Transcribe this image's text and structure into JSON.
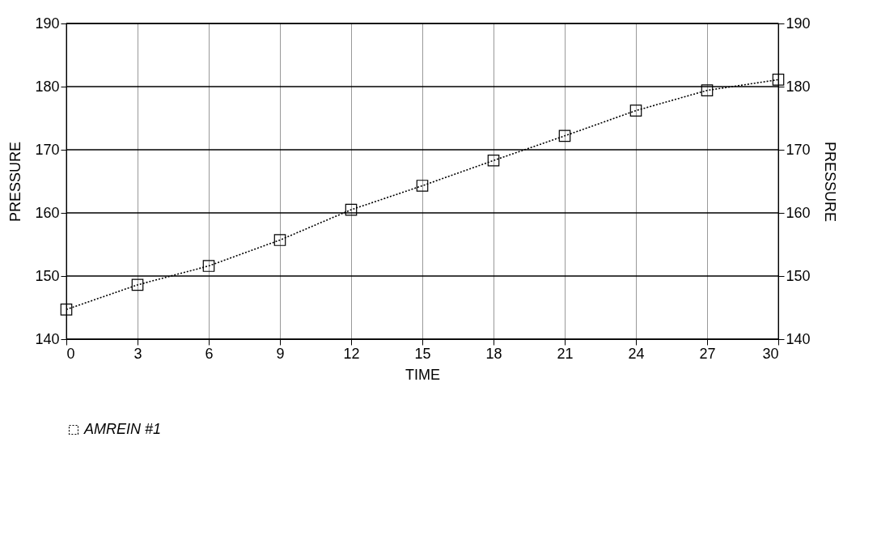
{
  "chart_data": {
    "type": "line",
    "xlabel": "TIME",
    "ylabel": "PRESSURE",
    "y2label": "PRESSURE",
    "x": [
      0,
      3,
      6,
      9,
      12,
      15,
      18,
      21,
      24,
      27,
      30
    ],
    "series": [
      {
        "name": "AMREIN #1",
        "color": "#000000",
        "values": [
          144.7,
          148.6,
          151.6,
          155.7,
          160.5,
          164.3,
          168.3,
          172.2,
          176.2,
          179.4,
          181.1
        ]
      }
    ],
    "xlim": [
      0,
      30
    ],
    "xticks": [
      0,
      3,
      6,
      9,
      12,
      15,
      18,
      21,
      24,
      27,
      30
    ],
    "ylim": [
      140,
      190
    ],
    "yticks": [
      140,
      150,
      160,
      170,
      180,
      190
    ],
    "y2lim": [
      140,
      190
    ],
    "y2ticks": [
      140,
      150,
      160,
      170,
      180,
      190
    ],
    "grid": true,
    "legend": "bottom",
    "marker": "square",
    "line_style": "dotted"
  }
}
